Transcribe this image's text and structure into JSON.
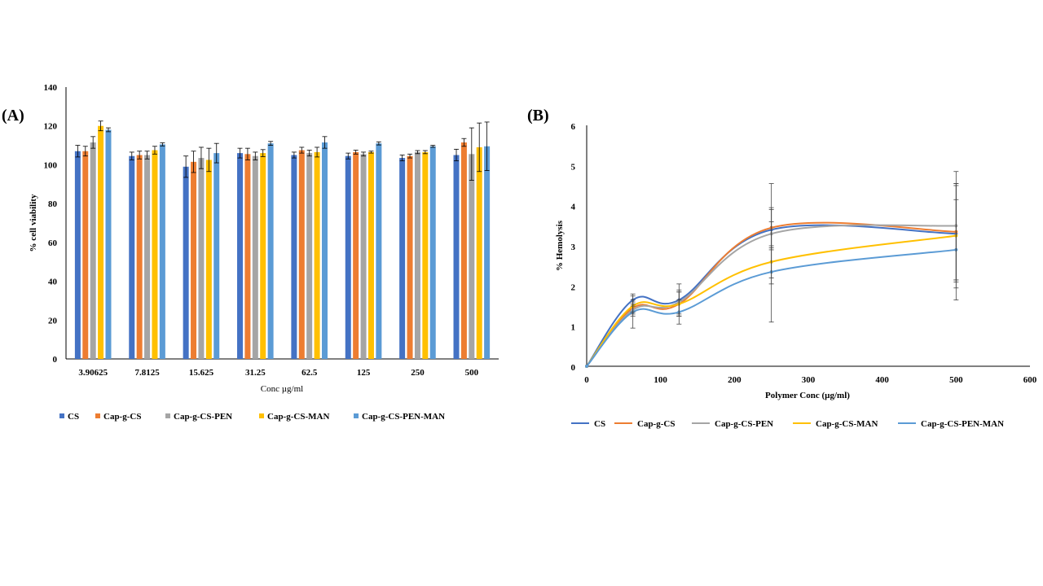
{
  "chart_data": [
    {
      "panel_label": "(A)",
      "type": "bar",
      "xlabel": "Conc µg/ml",
      "ylabel": "% cell viability",
      "ylim": [
        0,
        140
      ],
      "yticks": [
        0,
        20,
        40,
        60,
        80,
        100,
        120,
        140
      ],
      "grid": false,
      "legend_position": "bottom",
      "categories": [
        "3.90625",
        "7.8125",
        "15.625",
        "31.25",
        "62.5",
        "125",
        "250",
        "500"
      ],
      "series": [
        {
          "name": "CS",
          "color": "#4472C4",
          "values": [
            107,
            104.5,
            99,
            106,
            105,
            104.5,
            103.5,
            105
          ],
          "errors": [
            3,
            2,
            5.5,
            2.5,
            1.5,
            1.5,
            1.5,
            3
          ]
        },
        {
          "name": "Cap-g-CS",
          "color": "#ED7D31",
          "values": [
            107,
            105,
            101.5,
            105.5,
            107.5,
            106.5,
            104.5,
            111.5
          ],
          "errors": [
            2.5,
            2,
            5.5,
            3,
            1.5,
            1,
            1,
            2
          ]
        },
        {
          "name": "Cap-g-CS-PEN",
          "color": "#A5A5A5",
          "values": [
            111.5,
            105,
            103.5,
            104.5,
            106,
            105.5,
            106.5,
            105.5
          ],
          "errors": [
            3,
            2,
            5.5,
            2,
            1.5,
            1,
            0.8,
            13.5
          ]
        },
        {
          "name": "Cap-g-CS-MAN",
          "color": "#FFC000",
          "values": [
            120,
            107.5,
            102.5,
            106,
            106.5,
            106.5,
            106.5,
            109
          ],
          "errors": [
            2.5,
            2,
            6,
            1.8,
            2.5,
            0.5,
            0.8,
            12.5
          ]
        },
        {
          "name": "Cap-g-CS-PEN-MAN",
          "color": "#5B9BD5",
          "values": [
            118,
            110.5,
            106,
            111,
            111.5,
            111,
            109.5,
            109.5
          ],
          "errors": [
            1,
            0.8,
            5,
            1,
            3,
            0.8,
            0.5,
            12.5
          ]
        }
      ]
    },
    {
      "panel_label": "(B)",
      "type": "line",
      "xlabel": "Polymer Conc (µg/ml)",
      "ylabel": "% Hemolysis",
      "xlim": [
        0,
        600
      ],
      "ylim": [
        0,
        6
      ],
      "xticks": [
        0,
        100,
        200,
        300,
        400,
        500,
        600
      ],
      "yticks": [
        0,
        1,
        2,
        3,
        4,
        5,
        6
      ],
      "grid": false,
      "legend_position": "bottom",
      "x": [
        0,
        62.5,
        125,
        250,
        500
      ],
      "series": [
        {
          "name": "CS",
          "color": "#4472C4",
          "values": [
            0,
            1.65,
            1.65,
            3.4,
            3.3
          ],
          "errors": [
            0,
            0.15,
            0.4,
            0.5,
            1.2
          ]
        },
        {
          "name": "Cap-g-CS",
          "color": "#ED7D31",
          "values": [
            0,
            1.45,
            1.55,
            3.45,
            3.35
          ],
          "errors": [
            0,
            0.15,
            0.3,
            0.5,
            1.2
          ]
        },
        {
          "name": "Cap-g-CS-PEN",
          "color": "#A5A5A5",
          "values": [
            0,
            1.4,
            1.6,
            3.3,
            3.5
          ],
          "errors": [
            0,
            0.15,
            0.3,
            1.25,
            1.35
          ]
        },
        {
          "name": "Cap-g-CS-MAN",
          "color": "#FFC000",
          "values": [
            0,
            1.5,
            1.55,
            2.6,
            3.25
          ],
          "errors": [
            0,
            0.15,
            0.3,
            0.4,
            1.3
          ]
        },
        {
          "name": "Cap-g-CS-PEN-MAN",
          "color": "#5B9BD5",
          "values": [
            0,
            1.35,
            1.35,
            2.35,
            2.9
          ],
          "errors": [
            0,
            0.4,
            0.3,
            1.25,
            1.25
          ]
        }
      ]
    }
  ]
}
